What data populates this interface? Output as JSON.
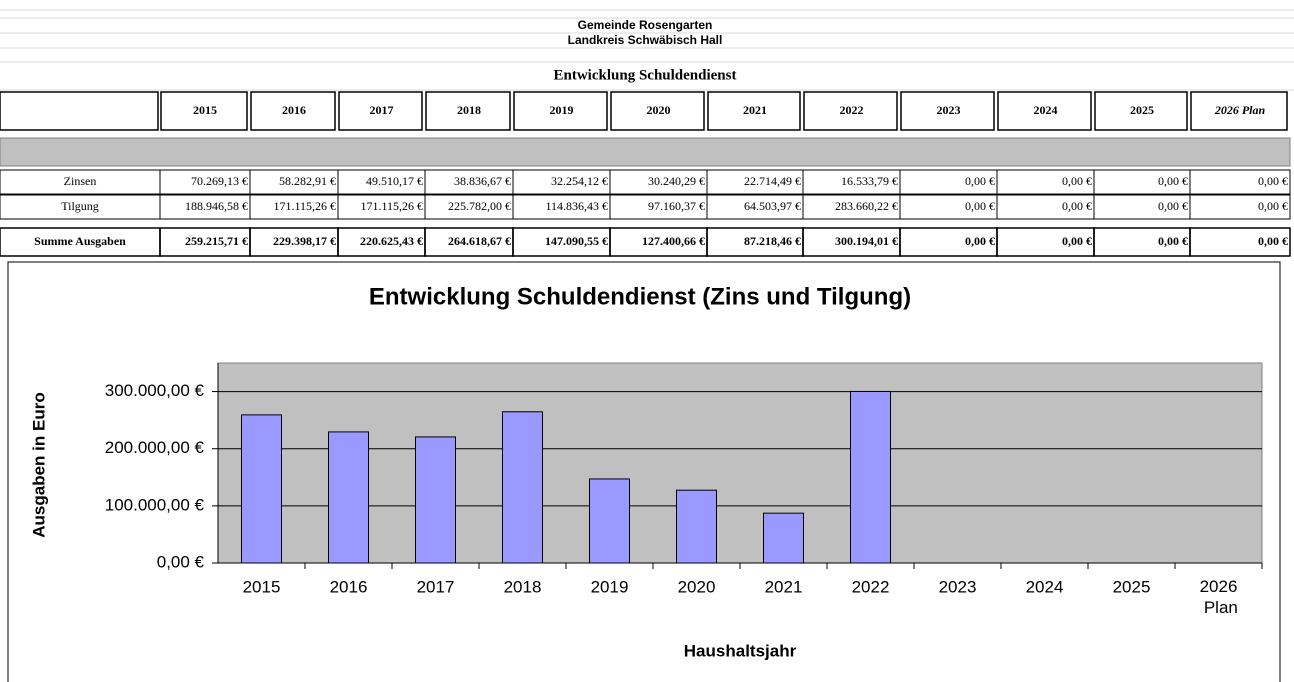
{
  "header": {
    "title": "Gemeinde Rosengarten",
    "subtitle": "Landkreis Schwäbisch Hall",
    "caption": "Entwicklung Schuldendienst"
  },
  "table": {
    "columns": [
      "2015",
      "2016",
      "2017",
      "2018",
      "2019",
      "2020",
      "2021",
      "2022",
      "2023",
      "2024",
      "2025",
      "2026 Plan"
    ],
    "rows": [
      {
        "label": "Zinsen",
        "cells": [
          "70.269,13 €",
          "58.282,91 €",
          "49.510,17 €",
          "38.836,67 €",
          "32.254,12 €",
          "30.240,29 €",
          "22.714,49 €",
          "16.533,79 €",
          "0,00 €",
          "0,00 €",
          "0,00 €",
          "0,00 €"
        ]
      },
      {
        "label": "Tilgung",
        "cells": [
          "188.946,58 €",
          "171.115,26 €",
          "171.115,26 €",
          "225.782,00 €",
          "114.836,43 €",
          "97.160,37 €",
          "64.503,97 €",
          "283.660,22 €",
          "0,00 €",
          "0,00 €",
          "0,00 €",
          "0,00 €"
        ]
      },
      {
        "label": "Summe Ausgaben",
        "cells": [
          "259.215,71 €",
          "229.398,17 €",
          "220.625,43 €",
          "264.618,67 €",
          "147.090,55 €",
          "127.400,66 €",
          "87.218,46 €",
          "300.194,01 €",
          "0,00 €",
          "0,00 €",
          "0,00 €",
          "0,00 €"
        ]
      }
    ]
  },
  "chart_data": {
    "type": "bar",
    "title": "Entwicklung Schuldendienst (Zins und Tilgung)",
    "y_label": "Ausgaben in Euro",
    "x_label": "Haushaltsjahr",
    "categories": [
      "2015",
      "2016",
      "2017",
      "2018",
      "2019",
      "2020",
      "2021",
      "2022",
      "2023",
      "2024",
      "2025",
      "2026 Plan"
    ],
    "values": [
      259215.71,
      229398.17,
      220625.43,
      264618.67,
      147090.55,
      127400.66,
      87218.46,
      300194.01,
      0,
      0,
      0,
      0
    ],
    "color": "#9999ff",
    "ylim": [
      0,
      350000
    ],
    "yticks": [
      {
        "value": 0,
        "label": "0,00 €"
      },
      {
        "value": 100000,
        "label": "100.000,00 €"
      },
      {
        "value": 200000,
        "label": "200.000,00 €"
      },
      {
        "value": 300000,
        "label": "300.000,00 €"
      }
    ],
    "grid": true
  }
}
